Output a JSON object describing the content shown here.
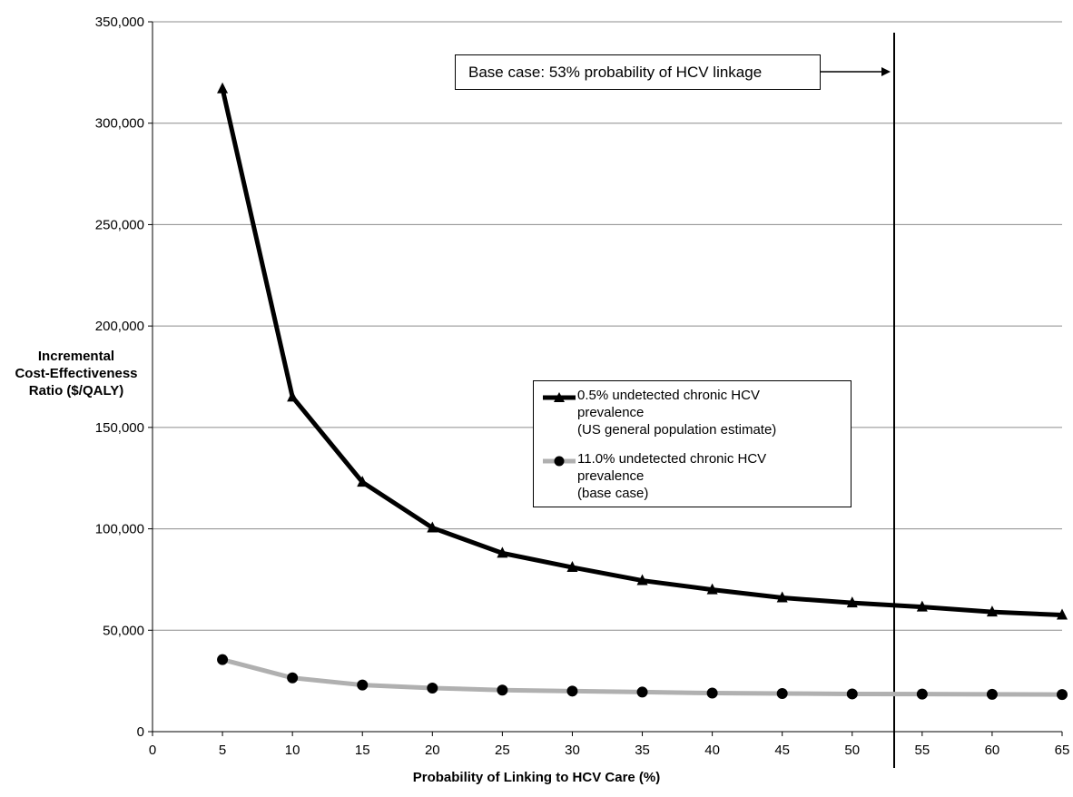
{
  "chart_data": {
    "type": "line",
    "title": "",
    "xlabel": "Probability of Linking to HCV Care (%)",
    "ylabel_lines": [
      "Incremental",
      "Cost-Effectiveness",
      "Ratio ($/QALY)"
    ],
    "xlim": [
      0,
      65
    ],
    "ylim": [
      0,
      350000
    ],
    "x_ticks": [
      "0",
      "5",
      "10",
      "15",
      "20",
      "25",
      "30",
      "35",
      "40",
      "45",
      "50",
      "55",
      "60",
      "65"
    ],
    "y_ticks": [
      "0",
      "50,000",
      "100,000",
      "150,000",
      "200,000",
      "250,000",
      "300,000",
      "350,000"
    ],
    "grid": "horizontal",
    "x": [
      5,
      10,
      15,
      20,
      25,
      30,
      35,
      40,
      45,
      50,
      55,
      60,
      65
    ],
    "series": [
      {
        "name_lines": [
          "0.5% undetected chronic HCV",
          "prevalence",
          "(US general population estimate)"
        ],
        "marker": "triangle",
        "color": "#000000",
        "values": [
          317000,
          165000,
          123000,
          100500,
          88000,
          81000,
          74500,
          70000,
          66000,
          63500,
          61500,
          59000,
          57500
        ]
      },
      {
        "name_lines": [
          "11.0% undetected chronic HCV",
          "prevalence",
          "(base case)"
        ],
        "marker": "circle",
        "color": "#b0b0b0",
        "marker_color": "#000000",
        "values": [
          35500,
          26500,
          23000,
          21500,
          20500,
          20000,
          19500,
          19000,
          18800,
          18600,
          18500,
          18400,
          18300
        ]
      }
    ],
    "annotation": {
      "text": "Base case: 53% probability of HCV linkage",
      "x": 53
    },
    "legend_position": "center-right"
  }
}
